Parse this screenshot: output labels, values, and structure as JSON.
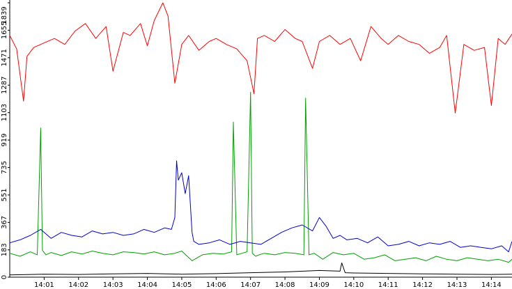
{
  "chart_data": {
    "type": "line",
    "title": "",
    "xlabel": "",
    "ylabel": "",
    "ylim": [
      0,
      1839
    ],
    "y_ticks": [
      0,
      183,
      367,
      551,
      735,
      919,
      1103,
      1287,
      1471,
      1655,
      1839
    ],
    "x_ticks": [
      "14:01",
      "14:02",
      "14:03",
      "14:04",
      "14:05",
      "14:06",
      "14:07",
      "14:08",
      "14:09",
      "14:10",
      "14:11",
      "14:12",
      "14:13",
      "14:14"
    ],
    "xlim": [
      0,
      14.6
    ],
    "grid": false,
    "legend": "none",
    "series": [
      {
        "color": "#ff0000",
        "x": [
          0,
          0.2,
          0.4,
          0.5,
          0.7,
          1.0,
          1.3,
          1.6,
          1.9,
          2.2,
          2.5,
          2.8,
          3.0,
          3.3,
          3.5,
          3.8,
          4.0,
          4.2,
          4.45,
          4.6,
          4.8,
          5.0,
          5.2,
          5.5,
          5.8,
          6.0,
          6.3,
          6.6,
          6.9,
          7.1,
          7.2,
          7.4,
          7.7,
          8.0,
          8.3,
          8.5,
          8.8,
          9.0,
          9.3,
          9.6,
          9.9,
          10.2,
          10.5,
          10.8,
          11.0,
          11.3,
          11.6,
          11.9,
          12.2,
          12.5,
          12.7,
          12.95,
          13.2,
          13.5,
          13.8,
          14.0,
          14.2,
          14.4,
          14.6
        ],
        "y": [
          1620,
          1530,
          1180,
          1480,
          1540,
          1570,
          1600,
          1560,
          1650,
          1700,
          1600,
          1680,
          1380,
          1640,
          1620,
          1700,
          1550,
          1720,
          1839,
          1750,
          1300,
          1560,
          1620,
          1520,
          1580,
          1600,
          1560,
          1530,
          1450,
          1230,
          1600,
          1620,
          1580,
          1660,
          1600,
          1580,
          1400,
          1580,
          1620,
          1560,
          1600,
          1450,
          1680,
          1600,
          1560,
          1620,
          1580,
          1560,
          1500,
          1540,
          1620,
          1100,
          1560,
          1520,
          1540,
          1150,
          1600,
          1560,
          1630
        ]
      },
      {
        "color": "#00a000",
        "x": [
          0,
          0.3,
          0.6,
          0.8,
          0.9,
          0.95,
          1.05,
          1.2,
          1.5,
          1.8,
          2.1,
          2.4,
          2.7,
          3.0,
          3.3,
          3.6,
          3.9,
          4.2,
          4.5,
          4.8,
          5.0,
          5.3,
          5.6,
          5.9,
          6.2,
          6.45,
          6.5,
          6.6,
          6.75,
          6.9,
          7.0,
          7.05,
          7.15,
          7.25,
          7.4,
          7.7,
          8.0,
          8.3,
          8.55,
          8.6,
          8.7,
          8.85,
          9.1,
          9.4,
          9.7,
          10.0,
          10.3,
          10.6,
          10.9,
          11.2,
          11.5,
          11.8,
          12.1,
          12.4,
          12.7,
          13.0,
          13.3,
          13.6,
          13.9,
          14.2,
          14.5,
          14.6
        ],
        "y": [
          160,
          140,
          170,
          150,
          1000,
          180,
          150,
          165,
          145,
          170,
          155,
          175,
          160,
          150,
          170,
          165,
          155,
          170,
          150,
          160,
          175,
          110,
          150,
          160,
          155,
          170,
          1040,
          150,
          160,
          170,
          1240,
          160,
          140,
          150,
          160,
          150,
          165,
          160,
          150,
          1200,
          150,
          160,
          120,
          165,
          150,
          160,
          120,
          130,
          150,
          110,
          120,
          130,
          110,
          140,
          120,
          110,
          130,
          120,
          110,
          120,
          100,
          120
        ]
      },
      {
        "color": "#0000cc",
        "x": [
          0,
          0.3,
          0.6,
          0.9,
          1.2,
          1.5,
          1.8,
          2.1,
          2.4,
          2.7,
          3.0,
          3.3,
          3.6,
          3.9,
          4.2,
          4.5,
          4.7,
          4.8,
          4.85,
          4.9,
          5.0,
          5.1,
          5.2,
          5.3,
          5.35,
          5.5,
          5.8,
          6.1,
          6.4,
          6.7,
          7.0,
          7.3,
          7.6,
          7.9,
          8.2,
          8.5,
          8.8,
          9.0,
          9.2,
          9.4,
          9.6,
          9.8,
          10.1,
          10.4,
          10.7,
          11.0,
          11.3,
          11.6,
          11.9,
          12.2,
          12.5,
          12.8,
          13.1,
          13.4,
          13.7,
          14.0,
          14.3,
          14.5,
          14.6
        ],
        "y": [
          230,
          250,
          280,
          320,
          260,
          300,
          280,
          270,
          310,
          290,
          300,
          280,
          290,
          320,
          300,
          330,
          320,
          400,
          780,
          650,
          700,
          560,
          680,
          300,
          240,
          220,
          230,
          250,
          220,
          240,
          230,
          220,
          260,
          300,
          330,
          350,
          310,
          400,
          340,
          260,
          280,
          250,
          260,
          230,
          270,
          210,
          220,
          240,
          210,
          230,
          220,
          240,
          200,
          210,
          200,
          190,
          210,
          170,
          240
        ]
      },
      {
        "color": "#000000",
        "x": [
          0,
          1.0,
          2.0,
          3.0,
          4.0,
          5.0,
          6.0,
          7.0,
          8.0,
          9.0,
          9.6,
          9.65,
          9.75,
          10.0,
          11.0,
          12.0,
          13.0,
          14.0,
          14.6
        ],
        "y": [
          15,
          20,
          18,
          22,
          25,
          20,
          24,
          30,
          35,
          45,
          40,
          95,
          30,
          28,
          25,
          22,
          20,
          18,
          20
        ]
      }
    ]
  }
}
